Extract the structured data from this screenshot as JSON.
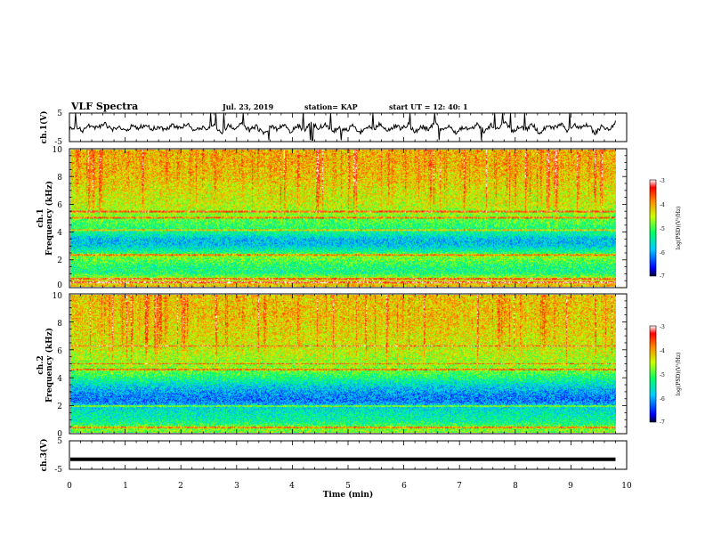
{
  "header": {
    "title": "VLF Spectra",
    "date": "Jul. 23, 2019",
    "station": "station= KAP",
    "start": "start UT =  12: 40: 1"
  },
  "chart_data": [
    {
      "type": "line",
      "ylabel": "ch.1(V)",
      "ylim": [
        -5,
        5
      ],
      "yticks": [
        "5",
        "-5"
      ],
      "description_values": {
        "x_range_min": [
          0,
          9.8
        ]
      },
      "y": [
        -0.6,
        0.4,
        -1.2,
        0.8,
        -0.3,
        1.5,
        -0.9,
        0.2,
        -1.6,
        0.6,
        -0.4,
        1.1,
        -0.7,
        0.3,
        -1.0,
        0.9,
        -0.5,
        1.3,
        -1.4,
        0.1,
        -0.8,
        0.7,
        -1.9,
        0.5,
        -0.2,
        1.8,
        -1.1,
        0.4,
        -2.3,
        0.2,
        -0.6,
        1.0,
        -1.5,
        0.6,
        -0.9,
        1.6,
        -0.3,
        0.8,
        -1.7,
        0.0,
        -1.2,
        0.9,
        -2.0,
        0.3,
        -0.7,
        1.4,
        -1.3,
        0.5,
        -0.4,
        1.2,
        -1.8,
        0.2,
        -0.5,
        1.7,
        -1.0,
        0.6,
        -2.1,
        0.1,
        -0.8,
        1.3,
        -1.4,
        0.7,
        -0.2,
        1.9,
        -1.6,
        0.4,
        -0.9,
        1.1,
        -2.4,
        0.3,
        -0.6,
        1.5,
        -1.1,
        0.8,
        -0.3,
        1.0,
        -1.9,
        0.2,
        -0.7,
        1.6
      ]
    },
    {
      "type": "heatmap",
      "ylabel": "ch.1\nFrequency (kHz)",
      "ylim": [
        0,
        10
      ],
      "yticks": [
        "0",
        "2",
        "4",
        "6",
        "8",
        "10"
      ],
      "colorbar": {
        "label": "log(PSD)(V²/Hz)",
        "ticks": [
          "-3",
          "-4",
          "-5",
          "-6",
          "-7"
        ],
        "range": [
          -7,
          -3
        ]
      },
      "profile": [
        {
          "f": 0.3,
          "v": -4.2
        },
        {
          "f": 0.6,
          "v": -4.6
        },
        {
          "f": 1.0,
          "v": -5.3
        },
        {
          "f": 1.5,
          "v": -5.2
        },
        {
          "f": 2.2,
          "v": -4.7
        },
        {
          "f": 2.6,
          "v": -5.4
        },
        {
          "f": 3.0,
          "v": -5.8
        },
        {
          "f": 3.4,
          "v": -5.9
        },
        {
          "f": 3.8,
          "v": -5.5
        },
        {
          "f": 4.3,
          "v": -5.2
        },
        {
          "f": 4.8,
          "v": -5.0
        },
        {
          "f": 5.3,
          "v": -4.7
        },
        {
          "f": 6.0,
          "v": -4.5
        },
        {
          "f": 7.0,
          "v": -4.4
        },
        {
          "f": 8.0,
          "v": -4.2
        },
        {
          "f": 9.0,
          "v": -4.1
        },
        {
          "f": 10.0,
          "v": -4.1
        }
      ]
    },
    {
      "type": "heatmap",
      "ylabel": "ch.2\nFrequency (kHz)",
      "ylim": [
        0,
        10
      ],
      "yticks": [
        "0",
        "2",
        "4",
        "6",
        "8",
        "10"
      ],
      "colorbar": {
        "label": "log(PSD)(V²/Hz)",
        "ticks": [
          "-3",
          "-4",
          "-5",
          "-6",
          "-7"
        ],
        "range": [
          -7,
          -3
        ]
      },
      "profile": [
        {
          "f": 0.3,
          "v": -4.8
        },
        {
          "f": 0.8,
          "v": -5.4
        },
        {
          "f": 1.3,
          "v": -5.5
        },
        {
          "f": 1.8,
          "v": -5.7
        },
        {
          "f": 2.3,
          "v": -6.2
        },
        {
          "f": 2.8,
          "v": -6.1
        },
        {
          "f": 3.3,
          "v": -5.8
        },
        {
          "f": 3.8,
          "v": -5.4
        },
        {
          "f": 4.3,
          "v": -5.0
        },
        {
          "f": 4.8,
          "v": -4.7
        },
        {
          "f": 5.5,
          "v": -4.6
        },
        {
          "f": 6.5,
          "v": -4.4
        },
        {
          "f": 7.5,
          "v": -4.3
        },
        {
          "f": 8.5,
          "v": -4.2
        },
        {
          "f": 10.0,
          "v": -4.2
        }
      ]
    },
    {
      "type": "line",
      "ylabel": "ch.3(V)",
      "ylim": [
        -5,
        5
      ],
      "yticks": [
        "5",
        "0",
        "-5"
      ],
      "y": [
        -1.5,
        -1.5
      ]
    }
  ],
  "xaxis": {
    "label": "Time (min)",
    "range": [
      0,
      10
    ],
    "ticks": [
      "0",
      "1",
      "2",
      "3",
      "4",
      "5",
      "6",
      "7",
      "8",
      "9",
      "10"
    ],
    "data_end": 9.8
  },
  "colors": {
    "trace": "#000000",
    "frame": "#000000"
  }
}
